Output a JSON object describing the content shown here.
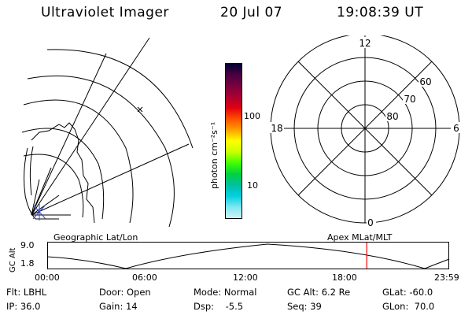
{
  "header": {
    "instrument": "Ultraviolet Imager",
    "date": "20 Jul 07",
    "time": "19:08:39 UT"
  },
  "colorbar": {
    "unit_label": "photon cm⁻²s⁻¹",
    "ticks": [
      "100",
      "10"
    ],
    "colors": [
      "#000033",
      "#4a0040",
      "#7a0040",
      "#aa0030",
      "#e00010",
      "#ff5000",
      "#ffa000",
      "#ffff00",
      "#c8ff00",
      "#40ff00",
      "#00d040",
      "#00c0a0",
      "#00d0e0",
      "#80e8f0",
      "#d0f0f8"
    ]
  },
  "polar_plot": {
    "mlt_labels": {
      "top": "12",
      "left": "18",
      "right": "6",
      "bottom": "0"
    },
    "lat_labels": [
      "60",
      "70",
      "80"
    ]
  },
  "timeline": {
    "left_label": "Geographic Lat/Lon",
    "right_label": "Apex MLat/MLT",
    "axis_label": "GC Alt",
    "y_ticks": [
      "9.0",
      "1.8"
    ],
    "x_ticks": [
      "00:00",
      "06:00",
      "12:00",
      "18:00",
      "23:59"
    ],
    "current_time_fraction": 0.795,
    "marker_color": "#ff0000"
  },
  "info": {
    "filter": "Flt: LBHL",
    "ip": "IP: 36.0",
    "door": "Door: Open",
    "gain": "Gain: 14",
    "mode": "Mode: Normal",
    "dsp": "Dsp:    -5.5",
    "gc_alt": "GC Alt: 6.2 Re",
    "seq": "Seq: 39",
    "glat": "GLat: -60.0",
    "glon": "GLon:  70.0"
  }
}
